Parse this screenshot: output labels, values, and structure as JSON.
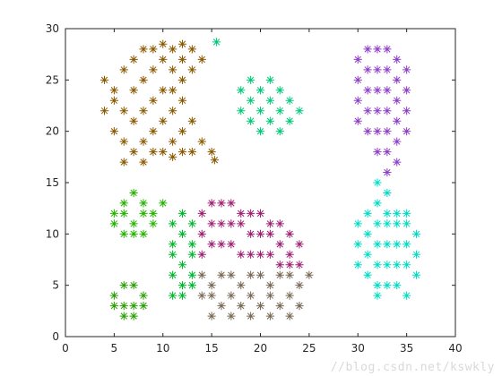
{
  "watermark": "//blog.csdn.net/kswkly",
  "chart_data": {
    "type": "scatter",
    "title": "",
    "xlabel": "",
    "ylabel": "",
    "xlim": [
      0,
      40
    ],
    "ylim": [
      0,
      30
    ],
    "xticks": [
      0,
      5,
      10,
      15,
      20,
      25,
      30,
      35,
      40
    ],
    "yticks": [
      0,
      5,
      10,
      15,
      20,
      25,
      30
    ],
    "grid": false,
    "legend": "none",
    "marker": "asterisk",
    "series": [
      {
        "color": "#8B5A00",
        "points": [
          [
            4,
            25
          ],
          [
            5,
            24
          ],
          [
            6,
            26
          ],
          [
            7,
            27
          ],
          [
            8,
            28
          ],
          [
            9,
            28
          ],
          [
            10,
            28.5
          ],
          [
            11,
            28
          ],
          [
            12,
            28.5
          ],
          [
            13,
            28
          ],
          [
            14,
            27
          ],
          [
            5,
            23
          ],
          [
            6,
            22
          ],
          [
            7,
            24
          ],
          [
            8,
            25
          ],
          [
            9,
            26
          ],
          [
            10,
            27
          ],
          [
            11,
            26
          ],
          [
            12,
            27
          ],
          [
            13,
            26
          ],
          [
            4,
            22
          ],
          [
            5,
            20
          ],
          [
            6,
            19
          ],
          [
            7,
            21
          ],
          [
            8,
            22
          ],
          [
            9,
            23
          ],
          [
            10,
            24
          ],
          [
            11,
            24
          ],
          [
            12,
            25
          ],
          [
            6,
            17
          ],
          [
            7,
            18
          ],
          [
            8,
            19
          ],
          [
            9,
            20
          ],
          [
            10,
            21
          ],
          [
            11,
            22
          ],
          [
            12,
            23
          ],
          [
            8,
            17
          ],
          [
            9,
            18
          ],
          [
            10,
            18
          ],
          [
            11,
            19
          ],
          [
            12,
            20
          ],
          [
            13,
            21
          ],
          [
            11,
            17.5
          ],
          [
            12,
            18
          ],
          [
            13,
            18
          ],
          [
            14,
            19
          ],
          [
            15,
            18
          ],
          [
            15.3,
            17.2
          ]
        ]
      },
      {
        "color": "#00C97A",
        "points": [
          [
            18,
            24
          ],
          [
            19,
            25
          ],
          [
            20,
            24
          ],
          [
            21,
            25
          ],
          [
            22,
            24
          ],
          [
            23,
            23
          ],
          [
            24,
            22
          ],
          [
            18,
            22
          ],
          [
            19,
            23
          ],
          [
            20,
            22
          ],
          [
            21,
            23
          ],
          [
            22,
            22
          ],
          [
            23,
            21
          ],
          [
            19,
            21
          ],
          [
            20,
            20
          ],
          [
            21,
            21
          ],
          [
            22,
            20
          ],
          [
            15.5,
            28.7
          ]
        ]
      },
      {
        "color": "#8E3EC8",
        "points": [
          [
            30,
            27
          ],
          [
            31,
            28
          ],
          [
            32,
            28
          ],
          [
            33,
            28
          ],
          [
            34,
            27
          ],
          [
            35,
            26
          ],
          [
            30,
            25
          ],
          [
            31,
            26
          ],
          [
            32,
            26
          ],
          [
            33,
            26
          ],
          [
            34,
            25
          ],
          [
            35,
            24
          ],
          [
            30,
            23
          ],
          [
            31,
            24
          ],
          [
            32,
            24
          ],
          [
            33,
            24
          ],
          [
            34,
            23
          ],
          [
            35,
            22
          ],
          [
            30,
            21
          ],
          [
            31,
            22
          ],
          [
            32,
            22
          ],
          [
            33,
            22
          ],
          [
            34,
            21
          ],
          [
            35,
            20
          ],
          [
            31,
            20
          ],
          [
            32,
            20
          ],
          [
            33,
            20
          ],
          [
            34,
            19
          ],
          [
            32,
            18
          ],
          [
            33,
            18
          ],
          [
            34,
            17
          ],
          [
            33,
            16
          ]
        ]
      },
      {
        "color": "#00DCC4",
        "points": [
          [
            32,
            15
          ],
          [
            33,
            14
          ],
          [
            32,
            13
          ],
          [
            33,
            12
          ],
          [
            34,
            12
          ],
          [
            35,
            12
          ],
          [
            30,
            11
          ],
          [
            31,
            12
          ],
          [
            32,
            11
          ],
          [
            33,
            11
          ],
          [
            34,
            11
          ],
          [
            35,
            11
          ],
          [
            36,
            10
          ],
          [
            30,
            9
          ],
          [
            31,
            10
          ],
          [
            32,
            9
          ],
          [
            33,
            9
          ],
          [
            34,
            9
          ],
          [
            35,
            9
          ],
          [
            36,
            8
          ],
          [
            30,
            7
          ],
          [
            31,
            8
          ],
          [
            32,
            7
          ],
          [
            33,
            7
          ],
          [
            34,
            7
          ],
          [
            35,
            7
          ],
          [
            36,
            6
          ],
          [
            31,
            6
          ],
          [
            32,
            5
          ],
          [
            33,
            5
          ],
          [
            34,
            5
          ],
          [
            35,
            4
          ],
          [
            32,
            4
          ]
        ]
      },
      {
        "color": "#24B400",
        "points": [
          [
            5,
            12
          ],
          [
            6,
            13
          ],
          [
            7,
            14
          ],
          [
            8,
            13
          ],
          [
            9,
            12
          ],
          [
            10,
            13
          ],
          [
            5,
            11
          ],
          [
            6,
            12
          ],
          [
            7,
            11
          ],
          [
            8,
            12
          ],
          [
            9,
            11
          ],
          [
            6,
            10
          ],
          [
            7,
            10
          ],
          [
            8,
            10
          ]
        ]
      },
      {
        "color": "#00B82E",
        "points": [
          [
            11,
            11
          ],
          [
            12,
            12
          ],
          [
            13,
            11
          ],
          [
            11,
            9
          ],
          [
            12,
            10
          ],
          [
            13,
            9
          ],
          [
            11,
            8
          ],
          [
            12,
            7
          ],
          [
            13,
            8
          ],
          [
            11,
            6
          ],
          [
            12,
            5
          ],
          [
            13,
            6
          ],
          [
            11,
            4
          ],
          [
            12,
            4
          ],
          [
            13,
            5
          ]
        ]
      },
      {
        "color": "#28A000",
        "points": [
          [
            5,
            4
          ],
          [
            6,
            5
          ],
          [
            7,
            5
          ],
          [
            8,
            4
          ],
          [
            5,
            3
          ],
          [
            6,
            3
          ],
          [
            7,
            3
          ],
          [
            8,
            3
          ],
          [
            6,
            2
          ],
          [
            7,
            2
          ]
        ]
      },
      {
        "color": "#9E1F72",
        "points": [
          [
            14,
            12
          ],
          [
            15,
            13
          ],
          [
            16,
            13
          ],
          [
            17,
            13
          ],
          [
            18,
            12
          ],
          [
            19,
            12
          ],
          [
            20,
            12
          ],
          [
            21,
            11
          ],
          [
            22,
            11
          ],
          [
            23,
            10
          ],
          [
            24,
            9
          ],
          [
            14,
            10
          ],
          [
            15,
            11
          ],
          [
            16,
            11
          ],
          [
            17,
            11
          ],
          [
            18,
            11
          ],
          [
            19,
            10
          ],
          [
            20,
            10
          ],
          [
            21,
            10
          ],
          [
            22,
            9
          ],
          [
            23,
            8
          ],
          [
            14,
            8
          ],
          [
            15,
            9
          ],
          [
            16,
            9
          ],
          [
            17,
            9
          ],
          [
            18,
            8
          ],
          [
            19,
            8
          ],
          [
            20,
            8
          ],
          [
            21,
            8
          ],
          [
            22,
            7
          ],
          [
            23,
            7
          ],
          [
            24,
            7
          ]
        ]
      },
      {
        "color": "#7A6A55",
        "points": [
          [
            14,
            6
          ],
          [
            15,
            5
          ],
          [
            16,
            6
          ],
          [
            17,
            6
          ],
          [
            18,
            5
          ],
          [
            19,
            6
          ],
          [
            20,
            6
          ],
          [
            21,
            5
          ],
          [
            22,
            6
          ],
          [
            23,
            6
          ],
          [
            24,
            5
          ],
          [
            25,
            6
          ],
          [
            14,
            4
          ],
          [
            15,
            4
          ],
          [
            16,
            3
          ],
          [
            17,
            4
          ],
          [
            18,
            3
          ],
          [
            19,
            4
          ],
          [
            20,
            3
          ],
          [
            21,
            4
          ],
          [
            22,
            3
          ],
          [
            23,
            4
          ],
          [
            24,
            3
          ],
          [
            15,
            2
          ],
          [
            17,
            2
          ],
          [
            19,
            2
          ],
          [
            21,
            2
          ],
          [
            23,
            2
          ]
        ]
      }
    ]
  }
}
